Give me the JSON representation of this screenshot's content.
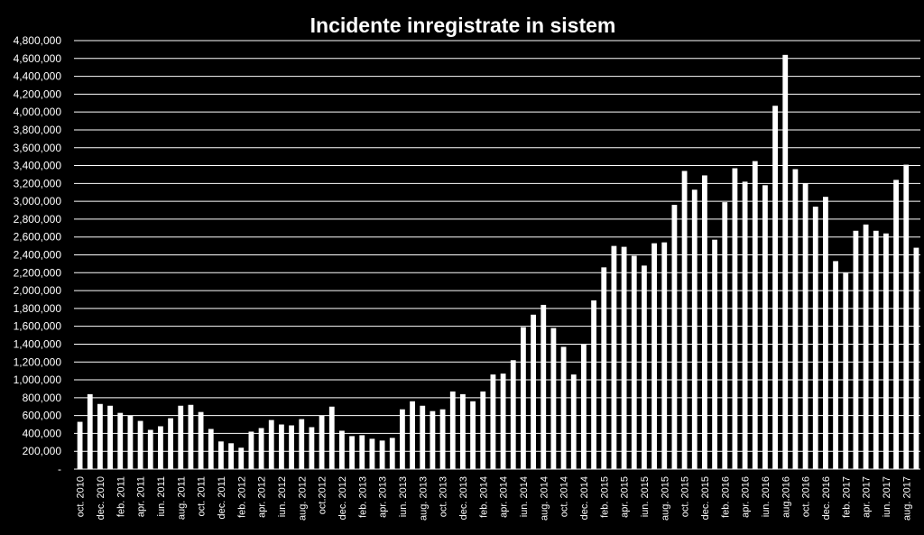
{
  "chart_data": {
    "type": "bar",
    "title": "Incidente inregistrate in sistem",
    "xlabel": "",
    "ylabel": "",
    "ylim": [
      0,
      4800000
    ],
    "yticks": [
      "-",
      "200,000",
      "400,000",
      "600,000",
      "800,000",
      "1,000,000",
      "1,200,000",
      "1,400,000",
      "1,600,000",
      "1,800,000",
      "2,000,000",
      "2,200,000",
      "2,400,000",
      "2,600,000",
      "2,800,000",
      "3,000,000",
      "3,200,000",
      "3,400,000",
      "3,600,000",
      "3,800,000",
      "4,000,000",
      "4,200,000",
      "4,400,000",
      "4,600,000",
      "4,800,000"
    ],
    "grid": true,
    "legend": "none",
    "colors": {
      "background": "#000000",
      "bar": "#ffffff",
      "text": "#ffffff",
      "grid": "#ffffff"
    },
    "categories": [
      "oct. 2010",
      "nov. 2010",
      "dec. 2010",
      "ian. 2011",
      "feb. 2011",
      "mar. 2011",
      "apr. 2011",
      "mai. 2011",
      "iun. 2011",
      "iul. 2011",
      "aug. 2011",
      "sep. 2011",
      "oct. 2011",
      "nov. 2011",
      "dec. 2011",
      "ian. 2012",
      "feb. 2012",
      "mar. 2012",
      "apr. 2012",
      "mai. 2012",
      "iun. 2012",
      "iul. 2012",
      "aug. 2012",
      "sep. 2012",
      "oct.2012",
      "nov. 2012",
      "dec. 2012",
      "ian. 2013",
      "feb. 2013",
      "mar. 2013",
      "apr. 2013",
      "mai. 2013",
      "iun. 2013",
      "iul. 2013",
      "aug. 2013",
      "sep. 2013",
      "oct. 2013",
      "nov. 2013",
      "dec. 2013",
      "ian. 2014",
      "feb. 2014",
      "mar. 2014",
      "apr. 2014",
      "mai. 2014",
      "iun. 2014",
      "iul. 2014",
      "aug. 2014",
      "sep. 2014",
      "oct. 2014",
      "nov. 2014",
      "dec. 2014",
      "ian. 2015",
      "feb. 2015",
      "mar. 2015",
      "apr. 2015",
      "mai. 2015",
      "iun. 2015",
      "iul. 2015",
      "aug. 2015",
      "sep. 2015",
      "oct. 2015",
      "nov. 2015",
      "dec. 2015",
      "ian. 2016",
      "feb. 2016",
      "mar. 2016",
      "apr. 2016",
      "mai. 2016",
      "iun. 2016",
      "iul. 2016",
      "aug.2016",
      "sep. 2016",
      "oct. 2016",
      "nov. 2016",
      "dec. 2016",
      "ian. 2017",
      "feb. 2017",
      "mar. 2017",
      "apr. 2017",
      "mai. 2017",
      "iun. 2017",
      "iul. 2017",
      "aug. 2017",
      "sep. 2017"
    ],
    "visible_labels": [
      "oct. 2010",
      "dec. 2010",
      "feb. 2011",
      "apr. 2011",
      "iun. 2011",
      "aug. 2011",
      "oct. 2011",
      "dec. 2011",
      "feb. 2012",
      "apr. 2012",
      "iun. 2012",
      "aug. 2012",
      "oct.2012",
      "dec. 2012",
      "feb. 2013",
      "apr. 2013",
      "iun. 2013",
      "aug. 2013",
      "oct. 2013",
      "dec. 2013",
      "feb. 2014",
      "apr. 2014",
      "iun. 2014",
      "aug. 2014",
      "oct. 2014",
      "dec. 2014",
      "feb. 2015",
      "apr. 2015",
      "iun. 2015",
      "aug. 2015",
      "oct. 2015",
      "dec. 2015",
      "feb. 2016",
      "apr. 2016",
      "iun. 2016",
      "aug.2016",
      "oct. 2016",
      "dec. 2016",
      "feb. 2017",
      "apr. 2017",
      "iun. 2017",
      "aug. 2017"
    ],
    "values": [
      530000,
      840000,
      730000,
      710000,
      630000,
      600000,
      540000,
      440000,
      480000,
      570000,
      710000,
      720000,
      640000,
      450000,
      310000,
      290000,
      240000,
      420000,
      460000,
      550000,
      500000,
      490000,
      560000,
      470000,
      600000,
      700000,
      430000,
      370000,
      380000,
      340000,
      320000,
      350000,
      670000,
      760000,
      710000,
      650000,
      670000,
      870000,
      840000,
      760000,
      870000,
      1060000,
      1070000,
      1220000,
      1590000,
      1730000,
      1840000,
      1580000,
      1370000,
      1060000,
      1400000,
      1890000,
      2260000,
      2500000,
      2490000,
      2390000,
      2280000,
      2530000,
      2540000,
      2960000,
      3340000,
      3130000,
      3290000,
      2570000,
      2990000,
      3370000,
      3220000,
      3450000,
      3180000,
      4070000,
      4640000,
      3360000,
      3200000,
      2940000,
      3050000,
      2330000,
      2200000,
      2670000,
      2740000,
      2670000,
      2640000,
      3240000,
      3410000,
      2480000
    ]
  }
}
